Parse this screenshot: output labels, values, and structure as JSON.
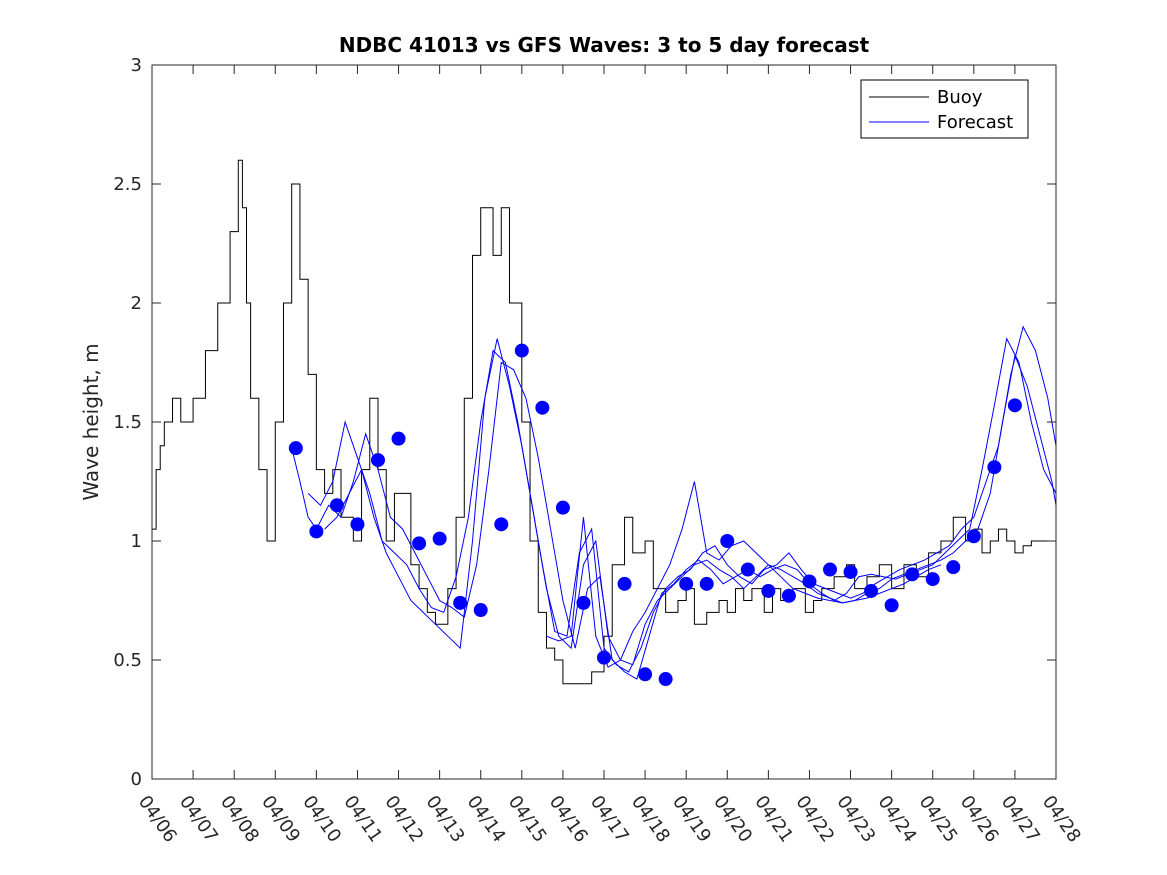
{
  "chart_data": {
    "type": "line",
    "title": "NDBC 41013 vs GFS Waves: 3 to 5 day forecast",
    "xlabel": "",
    "ylabel": "Wave height, m",
    "ylim": [
      0,
      3
    ],
    "yticks": [
      "0",
      "0.5",
      "1",
      "1.5",
      "2",
      "2.5",
      "3"
    ],
    "xlim": [
      0,
      22
    ],
    "x_unit": "days since 04/06",
    "xticks": [
      "04/06",
      "04/07",
      "04/08",
      "04/09",
      "04/10",
      "04/11",
      "04/12",
      "04/13",
      "04/14",
      "04/15",
      "04/16",
      "04/17",
      "04/18",
      "04/19",
      "04/20",
      "04/21",
      "04/22",
      "04/23",
      "04/24",
      "04/25",
      "04/26",
      "04/27",
      "04/28"
    ],
    "legend": {
      "position": "top-right",
      "entries": [
        "Buoy",
        "Forecast"
      ]
    },
    "colors": {
      "buoy": "#000000",
      "forecast": "#0000ff",
      "markers": "#0000ff"
    },
    "series": [
      {
        "name": "Buoy",
        "style": "step",
        "x": [
          0,
          0.1,
          0.2,
          0.3,
          0.5,
          0.7,
          1,
          1.3,
          1.6,
          1.9,
          2.1,
          2.2,
          2.3,
          2.4,
          2.6,
          2.8,
          3,
          3.2,
          3.4,
          3.6,
          3.8,
          4,
          4.2,
          4.4,
          4.6,
          4.9,
          5.1,
          5.3,
          5.5,
          5.7,
          5.9,
          6.1,
          6.3,
          6.5,
          6.7,
          6.9,
          7.2,
          7.4,
          7.6,
          7.8,
          8,
          8.3,
          8.5,
          8.7,
          9,
          9.2,
          9.4,
          9.6,
          9.8,
          10,
          10.3,
          10.5,
          10.7,
          11,
          11.2,
          11.5,
          11.7,
          12,
          12.2,
          12.5,
          12.8,
          13,
          13.2,
          13.5,
          13.8,
          14,
          14.2,
          14.4,
          14.6,
          14.9,
          15.1,
          15.3,
          15.6,
          15.9,
          16.1,
          16.3,
          16.6,
          16.9,
          17.1,
          17.4,
          17.7,
          18,
          18.3,
          18.6,
          18.9,
          19.2,
          19.5,
          19.8,
          20,
          20.2,
          20.4,
          20.6,
          20.8,
          21,
          21.2,
          21.4,
          21.6,
          21.8,
          22
        ],
        "values": [
          1.05,
          1.3,
          1.4,
          1.5,
          1.6,
          1.5,
          1.6,
          1.8,
          2.0,
          2.3,
          2.6,
          2.4,
          2.0,
          1.6,
          1.3,
          1.0,
          1.5,
          2.0,
          2.5,
          2.1,
          1.7,
          1.3,
          1.2,
          1.3,
          1.1,
          1.0,
          1.3,
          1.6,
          1.3,
          1.0,
          1.2,
          1.2,
          0.9,
          0.8,
          0.7,
          0.65,
          0.8,
          1.1,
          1.6,
          2.2,
          2.4,
          2.2,
          2.4,
          2.0,
          1.5,
          1.0,
          0.7,
          0.55,
          0.5,
          0.4,
          0.4,
          0.4,
          0.45,
          0.6,
          0.9,
          1.1,
          0.95,
          1.0,
          0.8,
          0.7,
          0.75,
          0.8,
          0.65,
          0.7,
          0.75,
          0.7,
          0.8,
          0.75,
          0.8,
          0.7,
          0.8,
          0.75,
          0.8,
          0.7,
          0.75,
          0.8,
          0.85,
          0.9,
          0.8,
          0.85,
          0.9,
          0.8,
          0.9,
          0.85,
          0.95,
          1.0,
          1.1,
          1.0,
          1.05,
          0.95,
          1.0,
          1.05,
          1.0,
          0.95,
          0.98,
          1.0,
          1.0,
          1.0,
          1.0
        ]
      },
      {
        "name": "Forecast",
        "style": "line",
        "x": [
          3.4,
          3.6,
          3.8,
          4.0,
          4.3,
          4.6,
          4.9,
          5.2,
          5.5,
          5.8,
          6.1,
          6.4,
          6.7,
          7.0,
          7.3,
          7.6,
          7.9,
          8.2,
          8.5,
          8.8,
          9.1,
          9.4,
          9.7,
          10.0,
          10.3,
          10.6,
          10.9,
          11.2,
          11.5,
          11.8,
          12.1,
          12.4,
          12.7,
          13.0,
          13.3,
          13.6,
          13.9,
          14.2,
          14.5,
          14.8,
          15.1,
          15.4,
          15.7,
          16.0,
          16.3,
          16.6,
          16.9,
          17.2,
          17.5,
          17.8,
          18.1,
          18.4,
          18.7,
          19.0,
          19.3,
          19.6,
          19.9,
          20.2,
          20.5,
          20.8,
          21.1,
          21.4,
          21.7,
          22.0
        ],
        "values": [
          1.39,
          1.25,
          1.1,
          1.05,
          1.15,
          1.1,
          1.25,
          1.45,
          1.3,
          1.1,
          1.05,
          0.95,
          0.85,
          0.75,
          0.72,
          0.68,
          0.9,
          1.3,
          1.75,
          1.72,
          1.6,
          1.35,
          1.05,
          0.75,
          0.55,
          0.8,
          0.85,
          0.5,
          0.45,
          0.42,
          0.6,
          0.78,
          0.82,
          0.88,
          0.92,
          0.88,
          0.82,
          0.85,
          0.88,
          0.85,
          0.88,
          0.9,
          0.88,
          0.82,
          0.78,
          0.75,
          0.78,
          0.85,
          0.86,
          0.85,
          0.84,
          0.86,
          0.88,
          0.9,
          0.95,
          1.0,
          1.05,
          1.3,
          1.57,
          1.85,
          1.75,
          1.5,
          1.3,
          1.2
        ]
      },
      {
        "name": "",
        "style": "line",
        "x": [
          3.8,
          4.1,
          4.4,
          4.7,
          5.0,
          5.3,
          5.6,
          5.9,
          6.2,
          6.5,
          6.8,
          7.1,
          7.4,
          7.7,
          8.0,
          8.3,
          8.6,
          8.9,
          9.2,
          9.5,
          9.8,
          10.1,
          10.4,
          10.7,
          11.0,
          11.3,
          11.6,
          11.9,
          12.2,
          12.5,
          12.8,
          13.1,
          13.4,
          13.7,
          14.0,
          14.3,
          14.6,
          14.9,
          15.2,
          15.5,
          15.8,
          16.1,
          16.4,
          16.7,
          17.0,
          17.3,
          17.6,
          17.9,
          18.2,
          18.5,
          18.8,
          19.1,
          19.4,
          19.7,
          20.0,
          20.3,
          20.6,
          20.9,
          21.2,
          21.5,
          21.8,
          22.0
        ],
        "values": [
          1.2,
          1.15,
          1.25,
          1.5,
          1.35,
          1.2,
          1.0,
          0.95,
          0.9,
          0.8,
          0.72,
          0.7,
          0.85,
          1.1,
          1.5,
          1.8,
          1.75,
          1.5,
          1.2,
          0.9,
          0.62,
          0.6,
          0.95,
          1.05,
          0.55,
          0.48,
          0.45,
          0.55,
          0.7,
          0.8,
          0.85,
          0.88,
          0.95,
          0.98,
          0.9,
          0.85,
          0.82,
          0.88,
          0.9,
          0.95,
          0.88,
          0.82,
          0.8,
          0.78,
          0.76,
          0.78,
          0.82,
          0.85,
          0.88,
          0.9,
          0.92,
          0.95,
          0.98,
          1.05,
          1.1,
          1.25,
          1.4,
          1.7,
          1.9,
          1.8,
          1.6,
          1.4
        ]
      },
      {
        "name": "",
        "style": "line",
        "x": [
          4.2,
          4.5,
          4.8,
          5.1,
          5.4,
          5.7,
          6.0,
          6.3,
          6.6,
          6.9,
          7.2,
          7.5,
          7.8,
          8.1,
          8.4,
          8.7,
          9.0,
          9.3,
          9.6,
          9.9,
          10.2,
          10.5,
          10.8,
          11.1,
          11.4,
          11.7,
          12.0,
          12.3,
          12.6,
          12.9,
          13.2,
          13.5,
          13.8,
          14.1,
          14.4,
          14.7,
          15.0,
          15.3,
          15.6,
          15.9,
          16.2,
          16.5,
          16.8,
          17.1,
          17.4,
          17.7,
          18.0,
          18.3,
          18.6,
          18.9,
          19.2,
          19.5,
          19.8,
          20.1,
          20.4,
          20.7,
          21.0,
          21.3,
          21.6,
          21.9,
          22.0
        ],
        "values": [
          1.05,
          1.1,
          1.2,
          1.3,
          1.1,
          0.95,
          0.85,
          0.75,
          0.7,
          0.65,
          0.6,
          0.55,
          1.0,
          1.6,
          1.85,
          1.65,
          1.4,
          1.1,
          0.8,
          0.6,
          0.55,
          0.9,
          1.0,
          0.6,
          0.5,
          0.48,
          0.65,
          0.75,
          0.8,
          0.85,
          0.9,
          0.92,
          0.88,
          0.85,
          0.8,
          0.85,
          0.9,
          0.88,
          0.85,
          0.82,
          0.78,
          0.76,
          0.74,
          0.75,
          0.78,
          0.8,
          0.84,
          0.86,
          0.88,
          0.9,
          0.92,
          0.95,
          1.0,
          1.05,
          1.2,
          1.5,
          1.78,
          1.65,
          1.45,
          1.25,
          1.15
        ]
      },
      {
        "name": "",
        "style": "line",
        "x": [
          9.6,
          9.9,
          10.2,
          10.5,
          10.8,
          11.1,
          11.4,
          11.7,
          12.0,
          12.3,
          12.6,
          12.9,
          13.2,
          13.5,
          13.8,
          14.1,
          14.4,
          14.7,
          15.0,
          15.3,
          15.6,
          15.9,
          16.2,
          16.5,
          16.8,
          17.1,
          17.4,
          17.7,
          18.0,
          18.3,
          18.6,
          18.9,
          19.2
        ],
        "values": [
          0.6,
          0.58,
          0.6,
          1.1,
          0.6,
          0.47,
          0.5,
          0.62,
          0.7,
          0.8,
          0.9,
          1.05,
          1.25,
          0.95,
          0.92,
          0.98,
          1.0,
          0.95,
          0.9,
          0.85,
          0.8,
          0.78,
          0.76,
          0.75,
          0.74,
          0.75,
          0.76,
          0.78,
          0.8,
          0.82,
          0.85,
          0.88,
          0.9
        ]
      },
      {
        "name": "",
        "style": "markers",
        "x": [
          3.5,
          4.0,
          4.5,
          5.0,
          5.5,
          6.0,
          6.5,
          7.0,
          7.5,
          8.0,
          8.5,
          9.0,
          9.5,
          10.0,
          10.5,
          11.0,
          11.5,
          12.0,
          12.5,
          13.0,
          13.5,
          14.0,
          14.5,
          15.0,
          15.5,
          16.0,
          16.5,
          17.0,
          17.5,
          18.0,
          18.5,
          19.0,
          19.5,
          20.0,
          20.5,
          21.0
        ],
        "values": [
          1.39,
          1.04,
          1.15,
          1.07,
          1.34,
          1.43,
          0.99,
          1.01,
          0.74,
          0.71,
          1.07,
          1.8,
          1.56,
          1.14,
          0.74,
          0.51,
          0.82,
          0.44,
          0.42,
          0.82,
          0.82,
          1.0,
          0.88,
          0.79,
          0.77,
          0.83,
          0.88,
          0.87,
          0.79,
          0.73,
          0.86,
          0.84,
          0.89,
          1.02,
          1.31,
          1.57
        ]
      }
    ]
  }
}
